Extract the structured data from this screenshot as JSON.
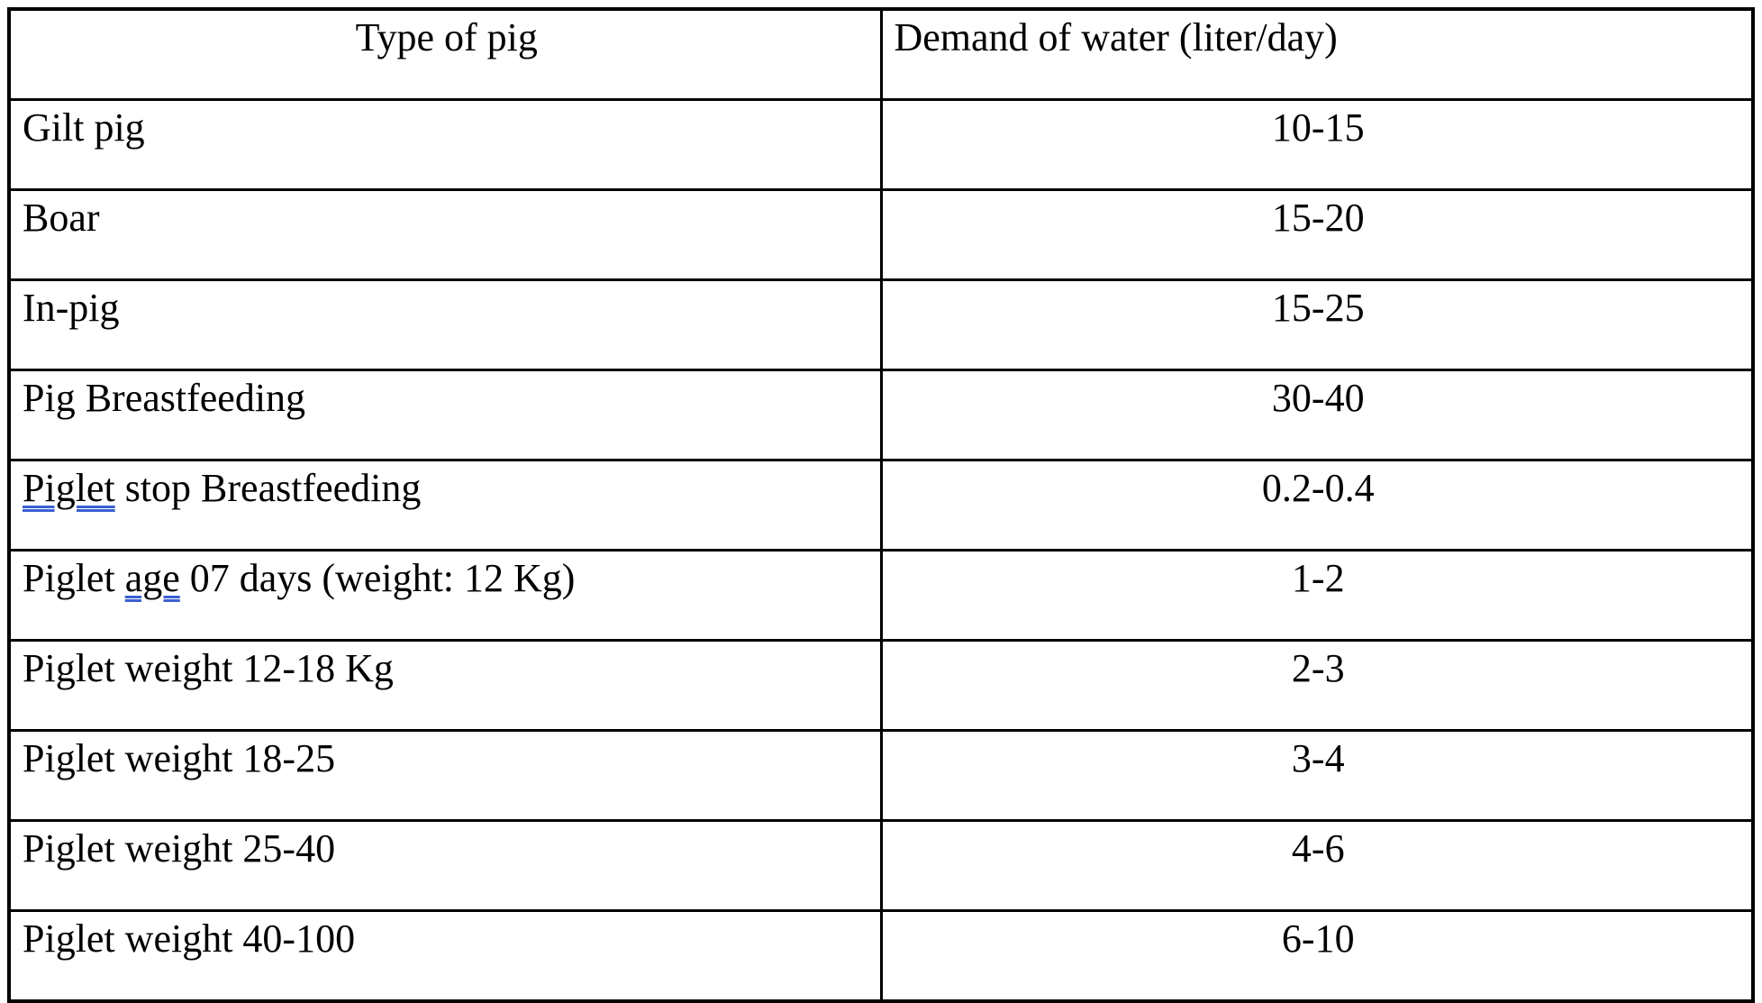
{
  "page": {
    "background": "#ffffff",
    "text_color": "#000000",
    "border_color": "#000000"
  },
  "table": {
    "grammar_underline_color": "#3a5fd0",
    "columns": [
      {
        "key": "type",
        "label": "Type of pig"
      },
      {
        "key": "demand",
        "label": "Demand of water (liter/day)"
      }
    ],
    "rows": [
      {
        "type": "Gilt pig",
        "demand": "10-15"
      },
      {
        "type": "Boar",
        "demand": "15-20"
      },
      {
        "type": "In-pig",
        "demand": "15-25"
      },
      {
        "type": "Pig Breastfeeding",
        "demand": "30-40"
      },
      {
        "type_segments": [
          {
            "text": "Piglet",
            "underline": true
          },
          {
            "text": " stop Breastfeeding",
            "underline": false
          }
        ],
        "demand": "0.2-0.4"
      },
      {
        "type_segments": [
          {
            "text": "Piglet ",
            "underline": false
          },
          {
            "text": "age",
            "underline": true
          },
          {
            "text": " 07 days (weight: 12 Kg)",
            "underline": false
          }
        ],
        "demand": "1-2"
      },
      {
        "type": "Piglet weight 12-18 Kg",
        "demand": "2-3"
      },
      {
        "type": "Piglet weight 18-25",
        "demand": "3-4"
      },
      {
        "type": "Piglet weight 25-40",
        "demand": "4-6"
      },
      {
        "type": "Piglet weight 40-100",
        "demand": "6-10"
      }
    ]
  }
}
